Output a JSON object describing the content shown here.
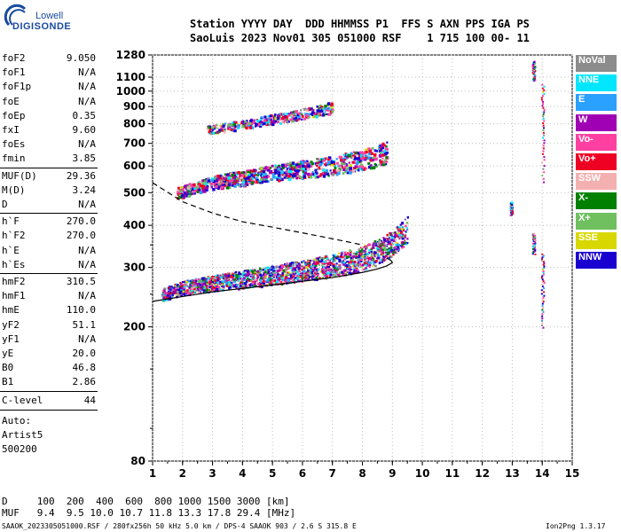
{
  "logo": {
    "line1": "Lowell",
    "line2": "DIGISONDE"
  },
  "header": {
    "line1": "Station YYYY DAY  DDD HHMMSS P1  FFS S AXN PPS IGA PS",
    "line2": "SaoLuis 2023 Nov01 305 051000 RSF    1 715 100 00- 11"
  },
  "params_group1": [
    {
      "name": "foF2",
      "value": "9.050"
    },
    {
      "name": "foF1",
      "value": "N/A"
    },
    {
      "name": "foF1p",
      "value": "N/A"
    },
    {
      "name": "foE",
      "value": "N/A"
    },
    {
      "name": "foEp",
      "value": "0.35"
    },
    {
      "name": "fxI",
      "value": "9.60"
    },
    {
      "name": "foEs",
      "value": "N/A"
    },
    {
      "name": "fmin",
      "value": "3.85"
    }
  ],
  "params_group2": [
    {
      "name": "MUF(D)",
      "value": "29.36"
    },
    {
      "name": "M(D)",
      "value": "3.24"
    },
    {
      "name": "D",
      "value": "N/A"
    }
  ],
  "params_group3": [
    {
      "name": "h`F",
      "value": "270.0"
    },
    {
      "name": "h`F2",
      "value": "270.0"
    },
    {
      "name": "h`E",
      "value": "N/A"
    },
    {
      "name": "h`Es",
      "value": "N/A"
    }
  ],
  "params_group4": [
    {
      "name": "hmF2",
      "value": "310.5"
    },
    {
      "name": "hmF1",
      "value": "N/A"
    },
    {
      "name": "hmE",
      "value": "110.0"
    },
    {
      "name": "yF2",
      "value": "51.1"
    },
    {
      "name": "yF1",
      "value": "N/A"
    },
    {
      "name": "yE",
      "value": "20.0"
    },
    {
      "name": "B0",
      "value": "46.8"
    },
    {
      "name": "B1",
      "value": "2.86"
    }
  ],
  "clevel": {
    "name": "C-level",
    "value": "44"
  },
  "autoscale": {
    "line1": "Auto:",
    "line2": "Artist5",
    "line3": "500200"
  },
  "legend": [
    {
      "label": "NoVal",
      "color": "#8c8c8c"
    },
    {
      "label": "NNE",
      "color": "#00e6ff"
    },
    {
      "label": "E",
      "color": "#2aa0ff"
    },
    {
      "label": "W",
      "color": "#a000b4"
    },
    {
      "label": "Vo-",
      "color": "#ff40a0"
    },
    {
      "label": "Vo+",
      "color": "#ee0022"
    },
    {
      "label": "SSW",
      "color": "#f4b0b0"
    },
    {
      "label": "X-",
      "color": "#008000"
    },
    {
      "label": "X+",
      "color": "#70c060"
    },
    {
      "label": "SSE",
      "color": "#d8d800"
    },
    {
      "label": "NNW",
      "color": "#1a00d0"
    }
  ],
  "footer": {
    "d_row": "D     100  200  400  600  800 1000 1500 3000 [km]",
    "muf_row": "MUF   9.4  9.5 10.0 10.7 11.8 13.3 17.8 29.4 [MHz]",
    "info": "SAAOK_2023305051000.RSF / 280fx256h 50 kHz 5.0 km / DPS-4 SAAOK 903 / 2.6 S 315.8 E",
    "version": "Ion2Png 1.3.17"
  },
  "chart_data": {
    "type": "scatter",
    "title": "",
    "xlabel": "",
    "ylabel": "",
    "xlim": [
      1,
      15
    ],
    "x_ticks": [
      1,
      2,
      3,
      4,
      5,
      6,
      7,
      8,
      9,
      10,
      11,
      12,
      13,
      14,
      15
    ],
    "y_ticks_labeled": [
      80,
      200,
      300,
      400,
      500,
      600,
      700,
      800,
      900,
      1000,
      1100,
      1280
    ],
    "y_ticks_minor": [
      100,
      150,
      250,
      350
    ],
    "ylim": [
      80,
      1280
    ],
    "grid": true,
    "series": [
      {
        "name": "profile",
        "x": [
          1.0,
          2.0,
          3.0,
          4.0,
          5.0,
          6.0,
          7.0,
          8.0,
          8.5,
          8.8,
          9.0,
          8.95,
          8.8
        ],
        "y": [
          238,
          246,
          254,
          260,
          266,
          273,
          280,
          290,
          297,
          303,
          310,
          315,
          320
        ]
      },
      {
        "name": "O-trace",
        "x": [
          1.3,
          2.0,
          3.0,
          4.0,
          5.0,
          6.0,
          7.0,
          8.0,
          8.5,
          9.0,
          9.5
        ],
        "y": [
          250,
          262,
          270,
          278,
          285,
          295,
          305,
          320,
          335,
          355,
          390
        ]
      },
      {
        "name": "2nd hop",
        "x": [
          1.8,
          3.0,
          4.0,
          5.0,
          6.0,
          7.0,
          8.0,
          8.8
        ],
        "y": [
          500,
          540,
          555,
          575,
          590,
          605,
          630,
          660
        ]
      },
      {
        "name": "3rd hop",
        "x": [
          2.8,
          4.0,
          5.0,
          6.0,
          7.0
        ],
        "y": [
          770,
          800,
          830,
          860,
          900
        ]
      },
      {
        "name": "extrapolation",
        "x": [
          1.0,
          2.0,
          3.0,
          4.0,
          5.0,
          6.0,
          7.0,
          8.0
        ],
        "y": [
          535,
          470,
          435,
          410,
          395,
          380,
          365,
          350
        ]
      }
    ]
  }
}
